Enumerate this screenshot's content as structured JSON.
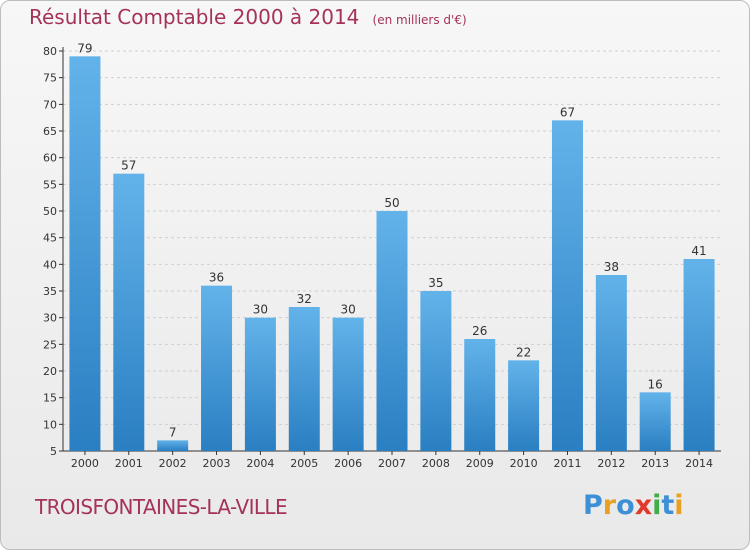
{
  "header": {
    "title": "Résultat Comptable 2000 à 2014",
    "subtitle": "(en milliers d'€)"
  },
  "footer": {
    "place": "TROISFONTAINES-LA-VILLE",
    "logo_letters": [
      "P",
      "r",
      "o",
      "x",
      "i",
      "t",
      "i"
    ],
    "logo_colors": [
      "#3d8fd6",
      "#e8a020",
      "#3d8fd6",
      "#e03a2c",
      "#3fae49",
      "#3d8fd6",
      "#e8a020"
    ]
  },
  "colors": {
    "title": "#a4325a",
    "bar_top": "#63b3ea",
    "bar_bottom": "#2a7fc2",
    "axis": "#333333",
    "grid": "#cfcfcf"
  },
  "chart_data": {
    "type": "bar",
    "title": "Résultat Comptable 2000 à 2014",
    "categories": [
      "2000",
      "2001",
      "2002",
      "2003",
      "2004",
      "2005",
      "2006",
      "2007",
      "2008",
      "2009",
      "2010",
      "2011",
      "2012",
      "2013",
      "2014"
    ],
    "values": [
      79,
      57,
      7,
      36,
      30,
      32,
      30,
      50,
      35,
      26,
      22,
      67,
      38,
      16,
      41
    ],
    "ylim": [
      5,
      80
    ],
    "yticks": [
      5,
      10,
      15,
      20,
      25,
      30,
      35,
      40,
      45,
      50,
      55,
      60,
      65,
      70,
      75,
      80
    ],
    "grid": "horizontal dashed"
  }
}
